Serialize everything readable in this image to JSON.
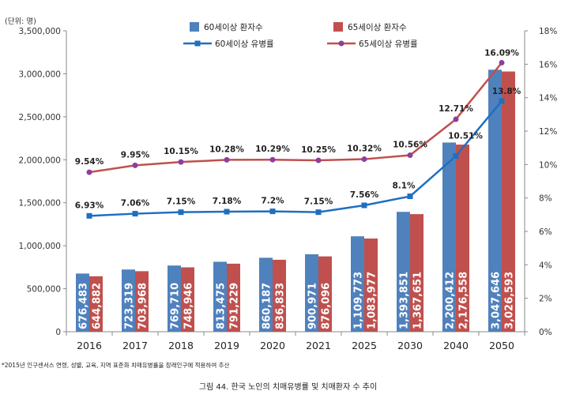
{
  "chart_data": {
    "type": "bar+line",
    "categories": [
      "2016",
      "2017",
      "2018",
      "2019",
      "2020",
      "2021",
      "2025",
      "2030",
      "2040",
      "2050"
    ],
    "left_axis": {
      "unit_label": "(단위: 명)",
      "min": 0,
      "max": 3500000,
      "step": 500000,
      "tick_labels": [
        "0",
        "500,000",
        "1,000,000",
        "1,500,000",
        "2,000,000",
        "2,500,000",
        "3,000,000",
        "3,500,000"
      ]
    },
    "right_axis": {
      "min": 0,
      "max": 18,
      "step": 2,
      "tick_labels": [
        "0%",
        "2%",
        "4%",
        "6%",
        "8%",
        "10%",
        "12%",
        "14%",
        "16%",
        "18%"
      ]
    },
    "bar_series": [
      {
        "name": "60세이상 환자수",
        "color": "#4F81BD",
        "values": [
          676483,
          723319,
          769710,
          813475,
          860187,
          900971,
          1109773,
          1393851,
          2200412,
          3047646
        ],
        "labels": [
          "676,483",
          "723,319",
          "769,710",
          "813,475",
          "860,187",
          "900,971",
          "1,109,773",
          "1,393,851",
          "2,200,412",
          "3,047,646"
        ]
      },
      {
        "name": "65세이상 환자수",
        "color": "#C0504D",
        "values": [
          644882,
          703968,
          748946,
          791229,
          836833,
          876096,
          1083977,
          1367651,
          2176558,
          3026593
        ],
        "labels": [
          "644,882",
          "703,968",
          "748,946",
          "791,229",
          "836,833",
          "876,096",
          "1,083,977",
          "1,367,651",
          "2,176,558",
          "3,026,593"
        ]
      }
    ],
    "line_series": [
      {
        "name": "60세이상 유병률",
        "color": "#1F6FBF",
        "marker": "square",
        "values": [
          6.93,
          7.06,
          7.15,
          7.18,
          7.2,
          7.15,
          7.56,
          8.1,
          10.51,
          13.8
        ],
        "labels": [
          "6.93%",
          "7.06%",
          "7.15%",
          "7.18%",
          "7.2%",
          "7.15%",
          "7.56%",
          "8.1%",
          "10.51%",
          "13.8%"
        ]
      },
      {
        "name": "65세이상 유병률",
        "color": "#C0504D",
        "marker": "circle",
        "marker_color": "#8E3E9E",
        "values": [
          9.54,
          9.95,
          10.15,
          10.28,
          10.29,
          10.25,
          10.32,
          10.56,
          12.71,
          16.09
        ],
        "labels": [
          "9.54%",
          "9.95%",
          "10.15%",
          "10.28%",
          "10.29%",
          "10.25%",
          "10.32%",
          "10.56%",
          "12.71%",
          "16.09%"
        ]
      }
    ],
    "legend_position": "top-center"
  },
  "footnote": "*2015년 인구센서스 연령, 성별, 교육, 지역 표준화 치매유병률을 장래인구에 적용하여 추산",
  "caption": "그림 44. 한국 노인의 치매유병률 및 치매환자 수 추이"
}
